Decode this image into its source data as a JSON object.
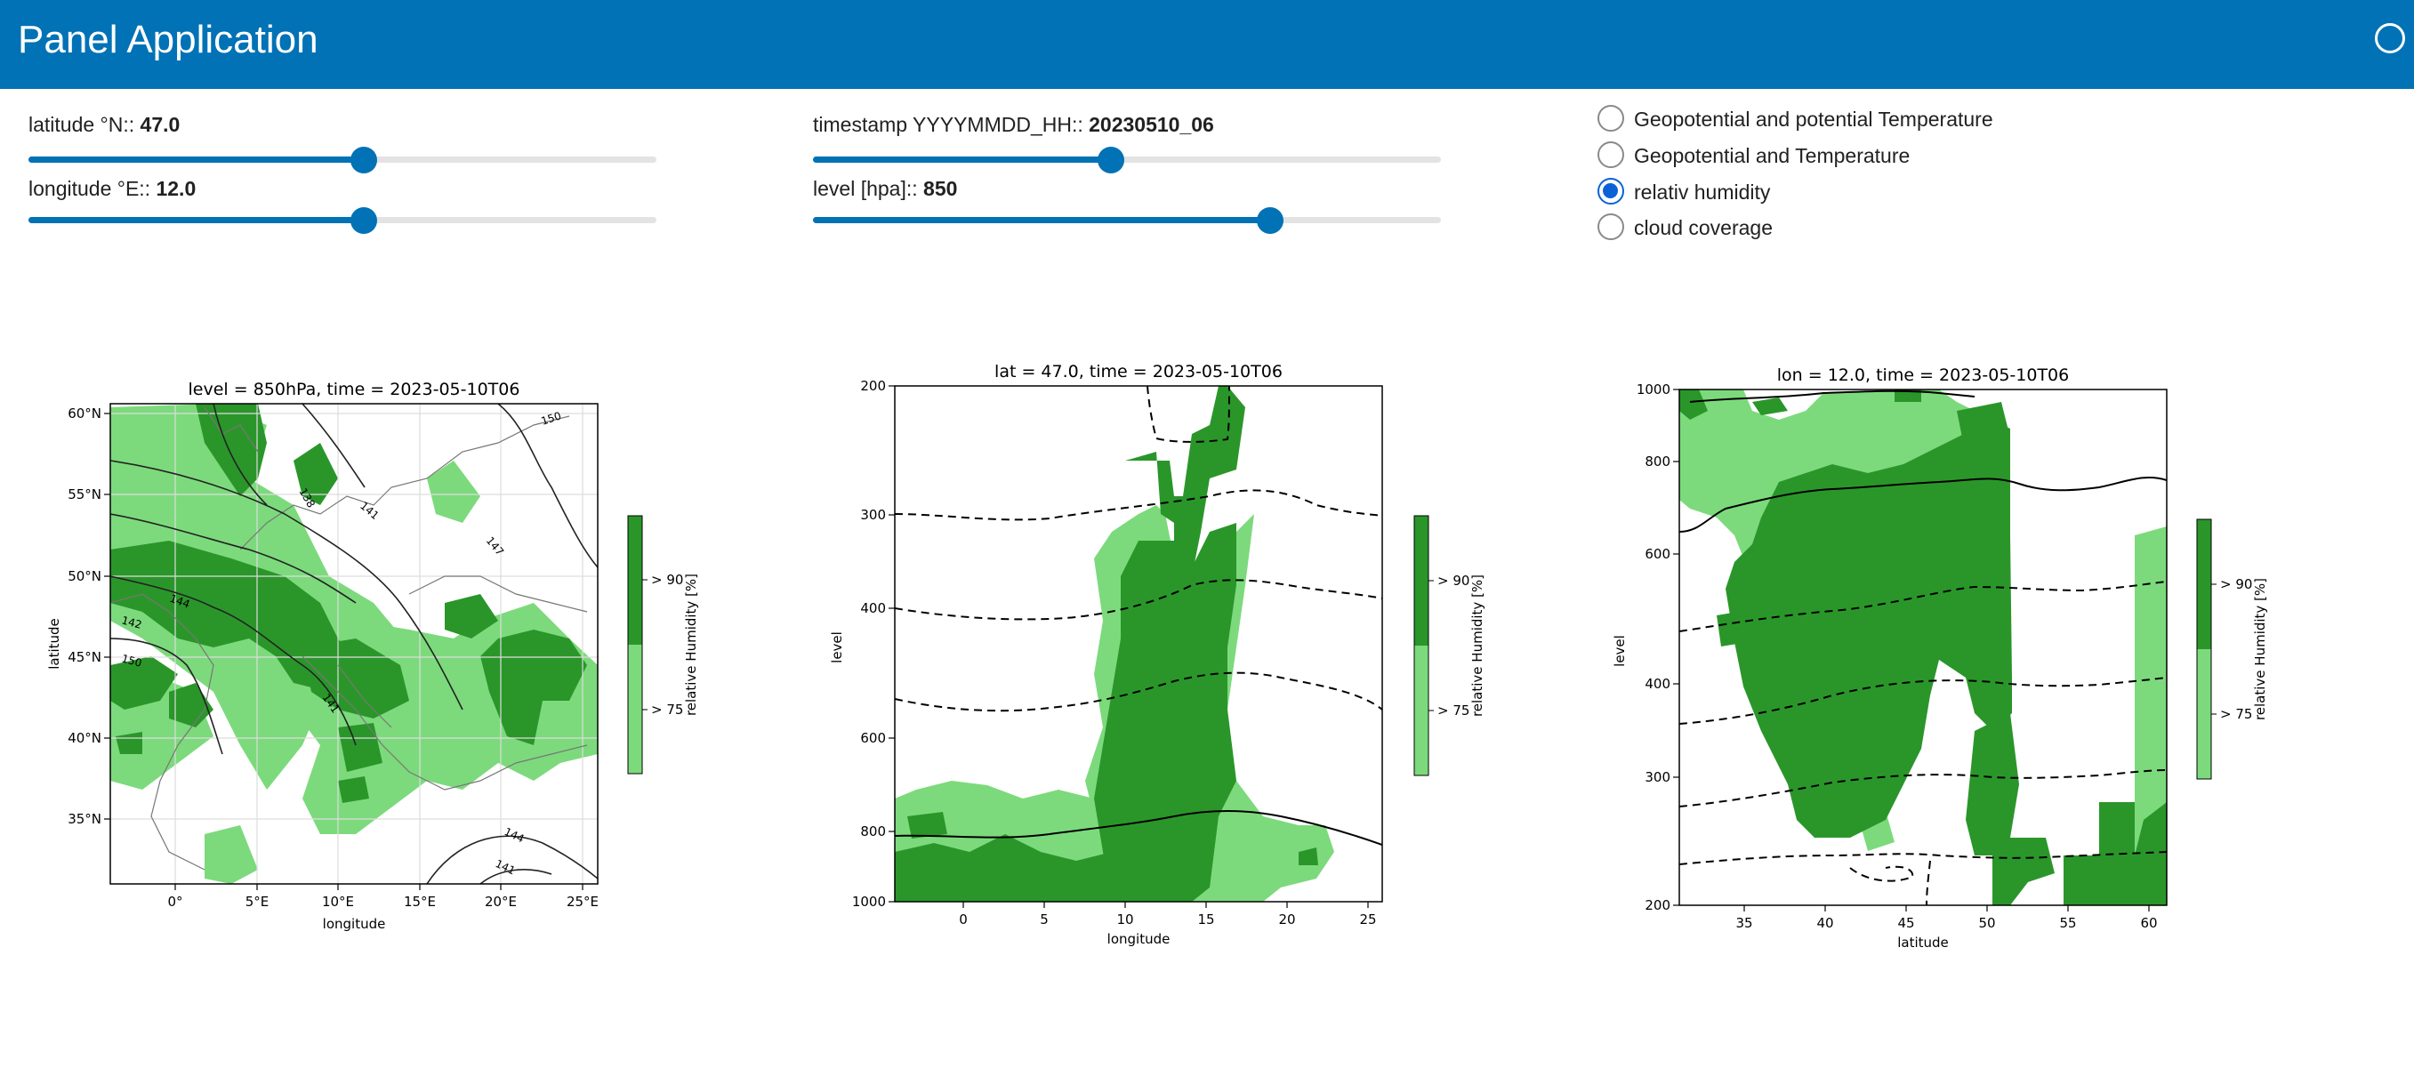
{
  "header": {
    "title": "Panel Application"
  },
  "controls": {
    "latitude": {
      "label": "latitude °N:: ",
      "value": "47.0",
      "fraction": 0.534
    },
    "longitude": {
      "label": "longitude °E:: ",
      "value": "12.0",
      "fraction": 0.534
    },
    "timestamp": {
      "label": "timestamp YYYYMMDD_HH:: ",
      "value": "20230510_06",
      "fraction": 0.474
    },
    "level": {
      "label": "level [hpa]:: ",
      "value": "850",
      "fraction": 0.728
    }
  },
  "variable_options": [
    {
      "label": "Geopotential and potential Temperature",
      "checked": false
    },
    {
      "label": "Geopotential and Temperature",
      "checked": false
    },
    {
      "label": "relativ humidity",
      "checked": true
    },
    {
      "label": "cloud coverage",
      "checked": false
    }
  ],
  "colors": {
    "header": "#0072b5",
    "dark_green": "#2a962a",
    "light_green": "#7cda7c",
    "radio_selected": "#0a63d6"
  },
  "chart_data": [
    {
      "type": "heatmap",
      "title": "level = 850hPa, time = 2023-05-10T06",
      "xlabel": "longitude",
      "ylabel": "latitude",
      "xticks": [
        "0°",
        "5°E",
        "10°E",
        "15°E",
        "20°E",
        "25°E"
      ],
      "yticks": [
        "35°N",
        "40°N",
        "45°N",
        "50°N",
        "55°N",
        "60°N"
      ],
      "contour_labels": [
        "150",
        "138",
        "141",
        "147",
        "144",
        "142",
        "150",
        "141",
        "144",
        "141"
      ],
      "colorbar": {
        "label": "relative Humidity [%]",
        "ticks": [
          "> 90",
          "> 75"
        ]
      }
    },
    {
      "type": "heatmap",
      "title": "lat = 47.0, time = 2023-05-10T06",
      "xlabel": "longitude",
      "ylabel": "level",
      "xticks": [
        "0",
        "5",
        "10",
        "15",
        "20",
        "25"
      ],
      "yticks": [
        "200",
        "300",
        "400",
        "600",
        "800",
        "1000"
      ],
      "colorbar": {
        "label": "relative Humidity [%]",
        "ticks": [
          "> 90",
          "> 75"
        ]
      }
    },
    {
      "type": "heatmap",
      "title": "lon = 12.0, time = 2023-05-10T06",
      "xlabel": "latitude",
      "ylabel": "level",
      "xticks": [
        "35",
        "40",
        "45",
        "50",
        "55",
        "60"
      ],
      "yticks": [
        "1000",
        "800",
        "600",
        "400",
        "300",
        "200"
      ],
      "colorbar": {
        "label": "relative Humidity [%]",
        "ticks": [
          "> 90",
          "> 75"
        ]
      }
    }
  ]
}
